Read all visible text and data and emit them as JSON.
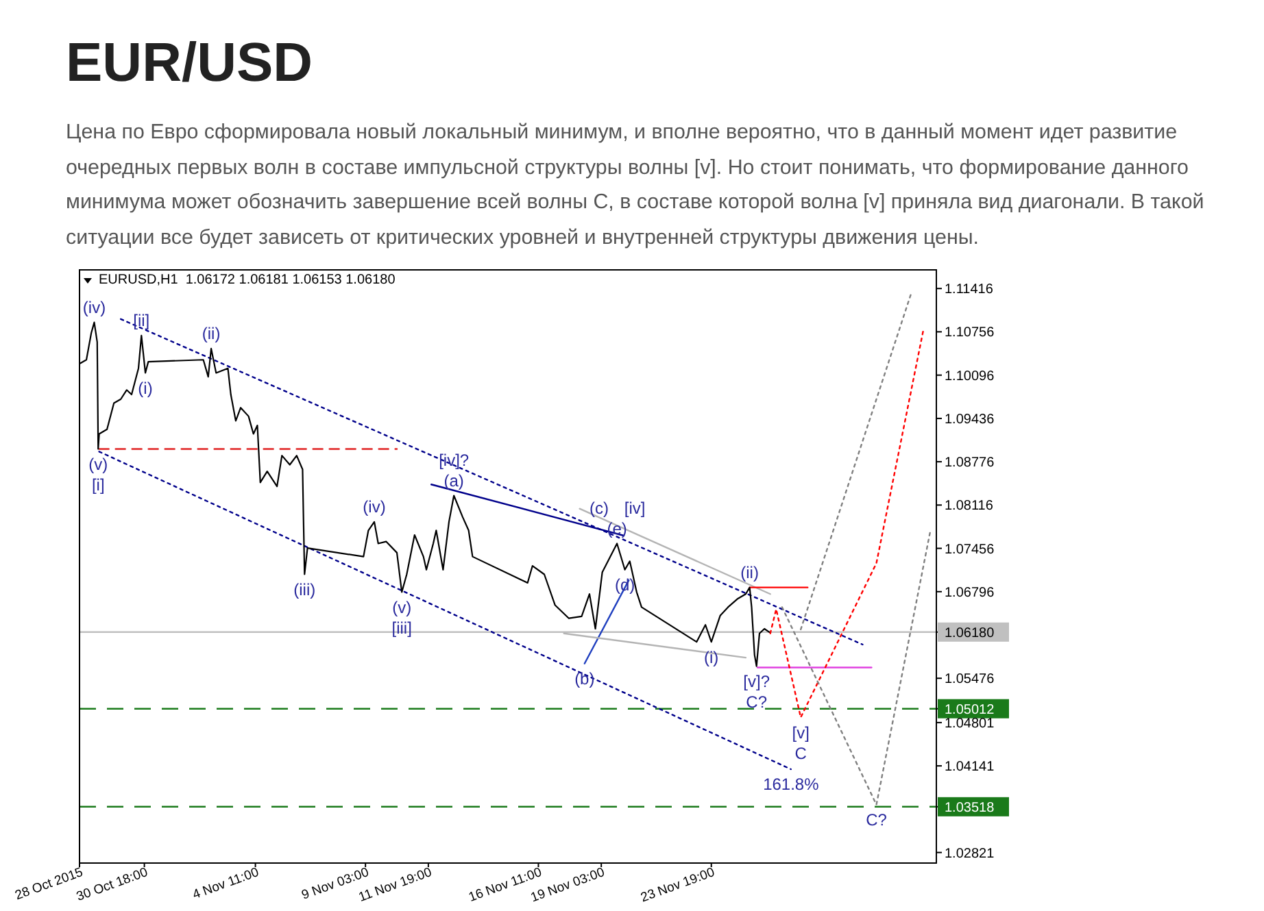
{
  "chart_data": {
    "type": "line",
    "title": "EUR/USD",
    "subtitle": "Цена по Евро сформировала новый локальный минимум, и вполне вероятно, что в данный момент идет развитие очередных первых волн в составе импульсной структуры волны [v]. Но стоит понимать, что формирование данного минимума может обозначить завершение всей волны С, в составе которой волна [v] приняла вид диагонали. В такой ситуации все будет зависеть от критических уровней и внутренней структуры движения цены.",
    "xlim": [
      "2015-10-28T00:00",
      "2015-12-03T08:00"
    ],
    "ylim": [
      1.0266,
      1.117
    ],
    "xticks": [
      {
        "value": "2015-10-28T00:00",
        "label": "28 Oct 2015"
      },
      {
        "value": "2015-10-30T18:00",
        "label": "30 Oct 18:00"
      },
      {
        "value": "2015-11-04T11:00",
        "label": "4 Nov 11:00"
      },
      {
        "value": "2015-11-09T03:00",
        "label": "9 Nov 03:00"
      },
      {
        "value": "2015-11-11T19:00",
        "label": "11 Nov 19:00"
      },
      {
        "value": "2015-11-16T11:00",
        "label": "16 Nov 11:00"
      },
      {
        "value": "2015-11-19T03:00",
        "label": "19 Nov 03:00"
      },
      {
        "value": "2015-11-23T19:00",
        "label": "23 Nov 19:00"
      }
    ],
    "yticks": [
      1.11416,
      1.10756,
      1.10096,
      1.09436,
      1.08776,
      1.08116,
      1.07456,
      1.06796,
      {
        "value": 1.0618,
        "label": "1.06180"
      },
      1.05476,
      {
        "value": 1.05012,
        "label": "1.05012"
      },
      1.04801,
      1.04141,
      {
        "value": 1.03518,
        "label": "1.03518"
      },
      1.02821
    ],
    "series": [
      {
        "color": "#000000",
        "x": [
          "2015-10-28T00:00",
          "2015-10-28T07:00",
          "2015-10-28T12:00",
          "2015-10-28T15:00",
          "2015-10-28T18:00",
          "2015-10-28T19:00",
          "2015-10-28T20:00",
          "2015-10-29T04:00",
          "2015-10-29T11:00",
          "2015-10-29T18:00",
          "2015-10-30T00:00",
          "2015-10-30T05:00",
          "2015-10-30T12:00",
          "2015-10-30T15:00",
          "2015-10-30T19:00",
          "2015-10-30T22:00",
          "2015-11-02T06:00",
          "2015-11-02T11:00",
          "2015-11-02T14:00",
          "2015-11-02T19:00",
          "2015-11-03T07:00",
          "2015-11-03T10:00",
          "2015-11-03T15:00",
          "2015-11-03T20:00",
          "2015-11-04T04:00",
          "2015-11-04T09:00",
          "2015-11-04T13:00",
          "2015-11-04T16:00",
          "2015-11-04T23:00",
          "2015-11-05T09:00",
          "2015-11-05T14:00",
          "2015-11-05T22:00",
          "2015-11-06T05:00",
          "2015-11-06T11:00",
          "2015-11-06T13:00",
          "2015-11-06T16:00",
          "2015-11-09T01:00",
          "2015-11-09T06:00",
          "2015-11-09T12:00",
          "2015-11-09T16:00",
          "2015-11-10T00:00",
          "2015-11-10T11:00",
          "2015-11-10T16:00",
          "2015-11-10T21:00",
          "2015-11-11T05:00",
          "2015-11-11T14:00",
          "2015-11-11T17:00",
          "2015-11-12T00:00",
          "2015-11-12T03:00",
          "2015-11-12T10:00",
          "2015-11-12T16:00",
          "2015-11-12T21:00",
          "2015-11-13T06:00",
          "2015-11-13T12:00",
          "2015-11-13T16:00",
          "2015-11-16T00:00",
          "2015-11-16T05:00",
          "2015-11-16T17:00",
          "2015-11-17T04:00",
          "2015-11-17T18:00",
          "2015-11-18T07:00",
          "2015-11-18T15:00",
          "2015-11-18T21:00",
          "2015-11-19T04:00",
          "2015-11-19T19:00",
          "2015-11-20T03:00",
          "2015-11-20T08:00",
          "2015-11-20T15:00",
          "2015-11-20T20:00",
          "2015-11-23T04:00",
          "2015-11-23T13:00",
          "2015-11-23T19:00",
          "2015-11-24T04:00",
          "2015-11-24T12:00",
          "2015-11-24T22:00",
          "2015-11-25T06:00",
          "2015-11-25T10:00",
          "2015-11-25T12:00",
          "2015-11-25T15:00",
          "2015-11-25T17:00",
          "2015-11-25T20:00",
          "2015-11-26T01:00",
          "2015-11-26T06:00"
        ],
        "values": [
          1.1027,
          1.1033,
          1.1074,
          1.109,
          1.106,
          1.0897,
          1.092,
          1.0927,
          1.0967,
          1.0973,
          1.0987,
          1.098,
          1.102,
          1.107,
          1.1013,
          1.103,
          1.1033,
          1.1007,
          1.105,
          1.1013,
          1.102,
          1.098,
          1.094,
          1.096,
          1.0947,
          1.092,
          1.0933,
          1.0846,
          1.0863,
          1.084,
          1.0887,
          1.0873,
          1.0887,
          1.0866,
          1.0706,
          1.0746,
          1.0733,
          1.0773,
          1.0786,
          1.0753,
          1.0756,
          1.0739,
          1.0679,
          1.0706,
          1.0766,
          1.0733,
          1.0713,
          1.0753,
          1.0773,
          1.0713,
          1.0786,
          1.0826,
          1.0793,
          1.0773,
          1.0733,
          1.0693,
          1.0719,
          1.0706,
          1.0659,
          1.0639,
          1.0642,
          1.0676,
          1.0623,
          1.0709,
          1.0753,
          1.0713,
          1.0726,
          1.0679,
          1.0656,
          1.0603,
          1.0629,
          1.0603,
          1.0643,
          1.0656,
          1.0669,
          1.0676,
          1.0686,
          1.0656,
          1.0583,
          1.0566,
          1.0616,
          1.0623,
          1.0618
        ]
      },
      {
        "type": "line",
        "color": "#00008b",
        "line_style": "dotted",
        "x": [
          "2015-10-29T18:00",
          "2015-11-30T05:00"
        ],
        "values": [
          1.1095,
          1.0599
        ]
      },
      {
        "type": "line",
        "color": "#00008b",
        "line_style": "dotted",
        "x": [
          "2015-10-28T20:00",
          "2015-11-27T04:00"
        ],
        "values": [
          1.0893,
          1.0409
        ]
      },
      {
        "type": "line",
        "color": "#00008b",
        "line_style": "solid",
        "x": [
          "2015-11-11T22:00",
          "2015-11-20T02:00"
        ],
        "values": [
          1.0843,
          1.0765
        ]
      },
      {
        "type": "line",
        "color": "#1f3fbf",
        "line_style": "solid",
        "x": [
          "2015-11-18T10:00",
          "2015-11-20T07:00"
        ],
        "values": [
          1.057,
          1.0697
        ]
      },
      {
        "type": "line",
        "color": "#b4b4b4",
        "line_style": "solid",
        "x": [
          "2015-11-18T05:00",
          "2015-11-26T07:00"
        ],
        "values": [
          1.0806,
          1.0676
        ]
      },
      {
        "type": "line",
        "color": "#b4b4b4",
        "line_style": "solid",
        "x": [
          "2015-11-17T13:00",
          "2015-11-25T06:00"
        ],
        "values": [
          1.0616,
          1.0579
        ]
      },
      {
        "type": "line",
        "color": "#e02020",
        "line_style": "dashed",
        "x": [
          "2015-10-28T20:00",
          "2015-11-10T11:00"
        ],
        "values": [
          1.0897,
          1.0897
        ]
      },
      {
        "type": "line",
        "color": "#ff0000",
        "line_style": "solid",
        "x": [
          "2015-11-25T10:00",
          "2015-11-27T21:00"
        ],
        "values": [
          1.0686,
          1.0686
        ]
      },
      {
        "type": "line",
        "color": "#e040e0",
        "line_style": "solid",
        "x": [
          "2015-11-25T18:00",
          "2015-11-30T14:00"
        ],
        "values": [
          1.0564,
          1.0564
        ]
      },
      {
        "type": "line",
        "color": "#ff0000",
        "line_style": "dotted",
        "x": [
          "2015-11-26T07:00",
          "2015-11-26T13:00",
          "2015-11-27T14:00",
          "2015-11-30T19:00",
          "2015-12-02T19:00"
        ],
        "values": [
          1.0616,
          1.0653,
          1.0488,
          1.0723,
          1.108
        ]
      },
      {
        "type": "line",
        "color": "#808080",
        "line_style": "dotted",
        "x": [
          "2015-11-26T19:00",
          "2015-11-30T19:00",
          "2015-12-03T02:00"
        ],
        "values": [
          1.0656,
          1.0355,
          1.0773
        ]
      },
      {
        "type": "line",
        "color": "#808080",
        "line_style": "dotted",
        "x": [
          "2015-11-27T14:00",
          "2015-12-02T07:00"
        ],
        "values": [
          1.0622,
          1.1137
        ]
      }
    ],
    "ref_lines": [
      {
        "axis": "y",
        "value": 1.0618,
        "color": "#c0c0c0",
        "line_style": "solid"
      },
      {
        "axis": "y",
        "value": 1.05012,
        "color": "#1a7a1a",
        "line_style": "dashed"
      },
      {
        "axis": "y",
        "value": 1.03518,
        "color": "#1a7a1a",
        "line_style": "dashed"
      }
    ],
    "annotations": [
      "EURUSD,H1  1.06172 1.06181 1.06153 1.06180",
      {
        "text": "(iv)",
        "x": "2015-10-28T15:00",
        "y": 1.109
      },
      {
        "text": "[ii]",
        "x": "2015-10-30T15:00",
        "y": 1.107
      },
      {
        "text": "(ii)",
        "x": "2015-11-02T14:00",
        "y": 1.105
      },
      {
        "text": "(i)",
        "x": "2015-10-30T19:00",
        "y": 1.1013
      },
      {
        "text": "(v)",
        "x": "2015-10-28T19:00",
        "y": 1.0897
      },
      {
        "text": "[i]",
        "x": "2015-10-28T19:00",
        "y": 1.0897
      },
      {
        "text": "(iv)",
        "x": "2015-11-09T12:00",
        "y": 1.0786
      },
      {
        "text": "(iii)",
        "x": "2015-11-06T13:00",
        "y": 1.0706
      },
      {
        "text": "(v)",
        "x": "2015-11-10T16:00",
        "y": 1.0679
      },
      {
        "text": "[iii]",
        "x": "2015-11-10T16:00",
        "y": 1.0679
      },
      {
        "text": "(a)",
        "x": "2015-11-12T21:00",
        "y": 1.0826
      },
      {
        "text": "[iv]?",
        "x": "2015-11-12T21:00",
        "y": 1.0826
      },
      {
        "text": "(b)",
        "x": "2015-11-18T10:00",
        "y": 1.057
      },
      {
        "text": "(d)",
        "x": "2015-11-20T03:00",
        "y": 1.0713
      },
      {
        "text": "(e)",
        "x": "2015-11-19T19:00",
        "y": 1.0753
      },
      {
        "text": "(c)",
        "x": "2015-11-19T19:00",
        "y": 1.0753
      },
      {
        "text": "[iv]",
        "x": "2015-11-19T19:00",
        "y": 1.0753
      },
      {
        "text": "(i)",
        "x": "2015-11-23T19:00",
        "y": 1.0603
      },
      {
        "text": "(ii)",
        "x": "2015-11-25T10:00",
        "y": 1.0686
      },
      {
        "text": "[v]?",
        "x": "2015-11-25T17:00",
        "y": 1.0566
      },
      {
        "text": "C?",
        "x": "2015-11-25T17:00",
        "y": 1.0566
      },
      {
        "text": "[v]",
        "x": "2015-11-27T14:00",
        "y": 1.0488
      },
      {
        "text": "C",
        "x": "2015-11-27T14:00",
        "y": 1.0488
      },
      {
        "text": "161.8%",
        "x": "2015-11-27T04:00",
        "y": 1.0409
      },
      {
        "text": "C?",
        "x": "2015-11-30T19:00",
        "y": 1.0355
      }
    ]
  }
}
